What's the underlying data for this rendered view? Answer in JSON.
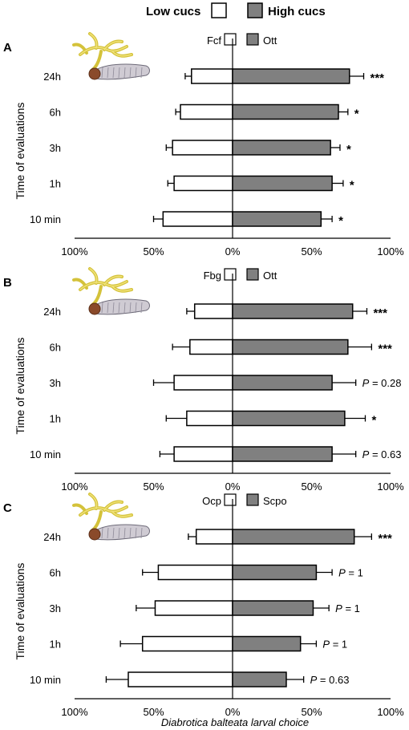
{
  "legend": {
    "low_label": "Low cucs",
    "high_label": "High cucs",
    "low_color": "#ffffff",
    "high_color": "#808080"
  },
  "xlabel": "Diabrotica balteata larval choice",
  "ylabel": "Time of evaluations",
  "larva_icon": "root-larva-icon",
  "chart_data": [
    {
      "type": "bar",
      "orientation": "horizontal-diverging",
      "panel_label": "A",
      "left_series": "Fcf",
      "right_series": "Ott",
      "categories": [
        "24h",
        "6h",
        "3h",
        "1h",
        "10 min"
      ],
      "left_values": [
        26,
        33,
        38,
        37,
        44
      ],
      "left_errors": [
        4,
        3,
        4,
        4,
        6
      ],
      "right_values": [
        74,
        67,
        62,
        63,
        56
      ],
      "right_errors": [
        9,
        6,
        6,
        7,
        7
      ],
      "annotations": [
        "***",
        "*",
        "*",
        "*",
        "*"
      ],
      "xticks": [
        "100%",
        "50%",
        "0%",
        "50%",
        "100%"
      ],
      "xlim": [
        -100,
        100
      ]
    },
    {
      "type": "bar",
      "orientation": "horizontal-diverging",
      "panel_label": "B",
      "left_series": "Fbg",
      "right_series": "Ott",
      "categories": [
        "24h",
        "6h",
        "3h",
        "1h",
        "10 min"
      ],
      "left_values": [
        24,
        27,
        37,
        29,
        37
      ],
      "left_errors": [
        5,
        11,
        13,
        13,
        9
      ],
      "right_values": [
        76,
        73,
        63,
        71,
        63
      ],
      "right_errors": [
        9,
        15,
        15,
        13,
        15
      ],
      "annotations": [
        "***",
        "***",
        "P = 0.28",
        "*",
        "P = 0.63"
      ],
      "xticks": [
        "100%",
        "50%",
        "0%",
        "50%",
        "100%"
      ],
      "xlim": [
        -100,
        100
      ]
    },
    {
      "type": "bar",
      "orientation": "horizontal-diverging",
      "panel_label": "C",
      "left_series": "Ocp",
      "right_series": "Scpo",
      "categories": [
        "24h",
        "6h",
        "3h",
        "1h",
        "10 min"
      ],
      "left_values": [
        23,
        47,
        49,
        57,
        66
      ],
      "left_errors": [
        5,
        10,
        12,
        14,
        14
      ],
      "right_values": [
        77,
        53,
        51,
        43,
        34
      ],
      "right_errors": [
        11,
        10,
        10,
        10,
        11
      ],
      "annotations": [
        "***",
        "P = 1",
        "P = 1",
        "P = 1",
        "P = 0.63"
      ],
      "xticks": [
        "100%",
        "50%",
        "0%",
        "50%",
        "100%"
      ],
      "xlim": [
        -100,
        100
      ]
    }
  ]
}
